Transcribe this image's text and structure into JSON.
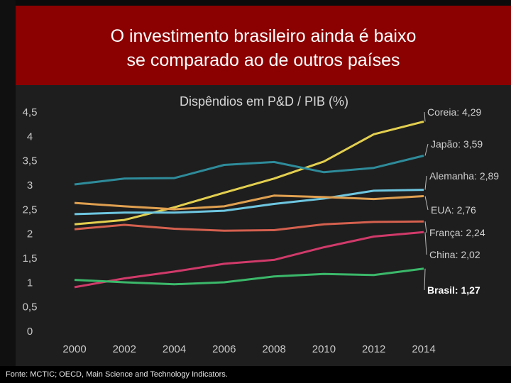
{
  "banner": {
    "line1": "O investimento brasileiro ainda é baixo",
    "line2": "se comparado ao de outros países"
  },
  "footer": {
    "source": "Fonte: MCTIC; OECD, Main Science and Technology Indicators."
  },
  "chart_data": {
    "type": "line",
    "title": "Dispêndios em P&D / PIB (%)",
    "xlabel": "",
    "ylabel": "",
    "x": [
      2000,
      2002,
      2004,
      2006,
      2008,
      2010,
      2012,
      2014
    ],
    "x_tick_labels": [
      "2000",
      "2002",
      "2004",
      "2006",
      "2008",
      "2010",
      "2012",
      "2014"
    ],
    "y_ticks": [
      0,
      0.5,
      1,
      1.5,
      2,
      2.5,
      3,
      3.5,
      4,
      4.5
    ],
    "y_tick_labels": [
      "0",
      "0,5",
      "1",
      "1,5",
      "2",
      "2,5",
      "3",
      "3,5",
      "4",
      "4,5"
    ],
    "ylim": [
      0,
      4.5
    ],
    "xlim": [
      2000,
      2014
    ],
    "grid": false,
    "series": [
      {
        "name": "Coreia",
        "label": "Coreia: 4,29",
        "color": "#e3cf4f",
        "values": [
          2.18,
          2.27,
          2.53,
          2.83,
          3.12,
          3.47,
          4.03,
          4.29
        ]
      },
      {
        "name": "Japão",
        "label": "Japão: 3,59",
        "color": "#2e8b9a",
        "values": [
          3.0,
          3.12,
          3.13,
          3.4,
          3.46,
          3.25,
          3.34,
          3.59
        ]
      },
      {
        "name": "Alemanha",
        "label": "Alemanha: 2,89",
        "color": "#6ec6e0",
        "values": [
          2.39,
          2.42,
          2.42,
          2.46,
          2.6,
          2.71,
          2.87,
          2.89
        ]
      },
      {
        "name": "EUA",
        "label": "EUA:  2,76",
        "color": "#e0a050",
        "values": [
          2.62,
          2.55,
          2.49,
          2.55,
          2.77,
          2.74,
          2.7,
          2.76
        ]
      },
      {
        "name": "França",
        "label": "França: 2,24",
        "color": "#d4604e",
        "values": [
          2.08,
          2.17,
          2.09,
          2.05,
          2.06,
          2.18,
          2.23,
          2.24
        ]
      },
      {
        "name": "China",
        "label": "China: 2,02",
        "color": "#d03a6a",
        "values": [
          0.89,
          1.07,
          1.21,
          1.37,
          1.45,
          1.71,
          1.93,
          2.02
        ]
      },
      {
        "name": "Brasil",
        "label": "Brasil: 1,27",
        "color": "#3bb86a",
        "values": [
          1.04,
          0.99,
          0.95,
          0.99,
          1.11,
          1.16,
          1.14,
          1.27
        ],
        "bold": true
      }
    ]
  }
}
